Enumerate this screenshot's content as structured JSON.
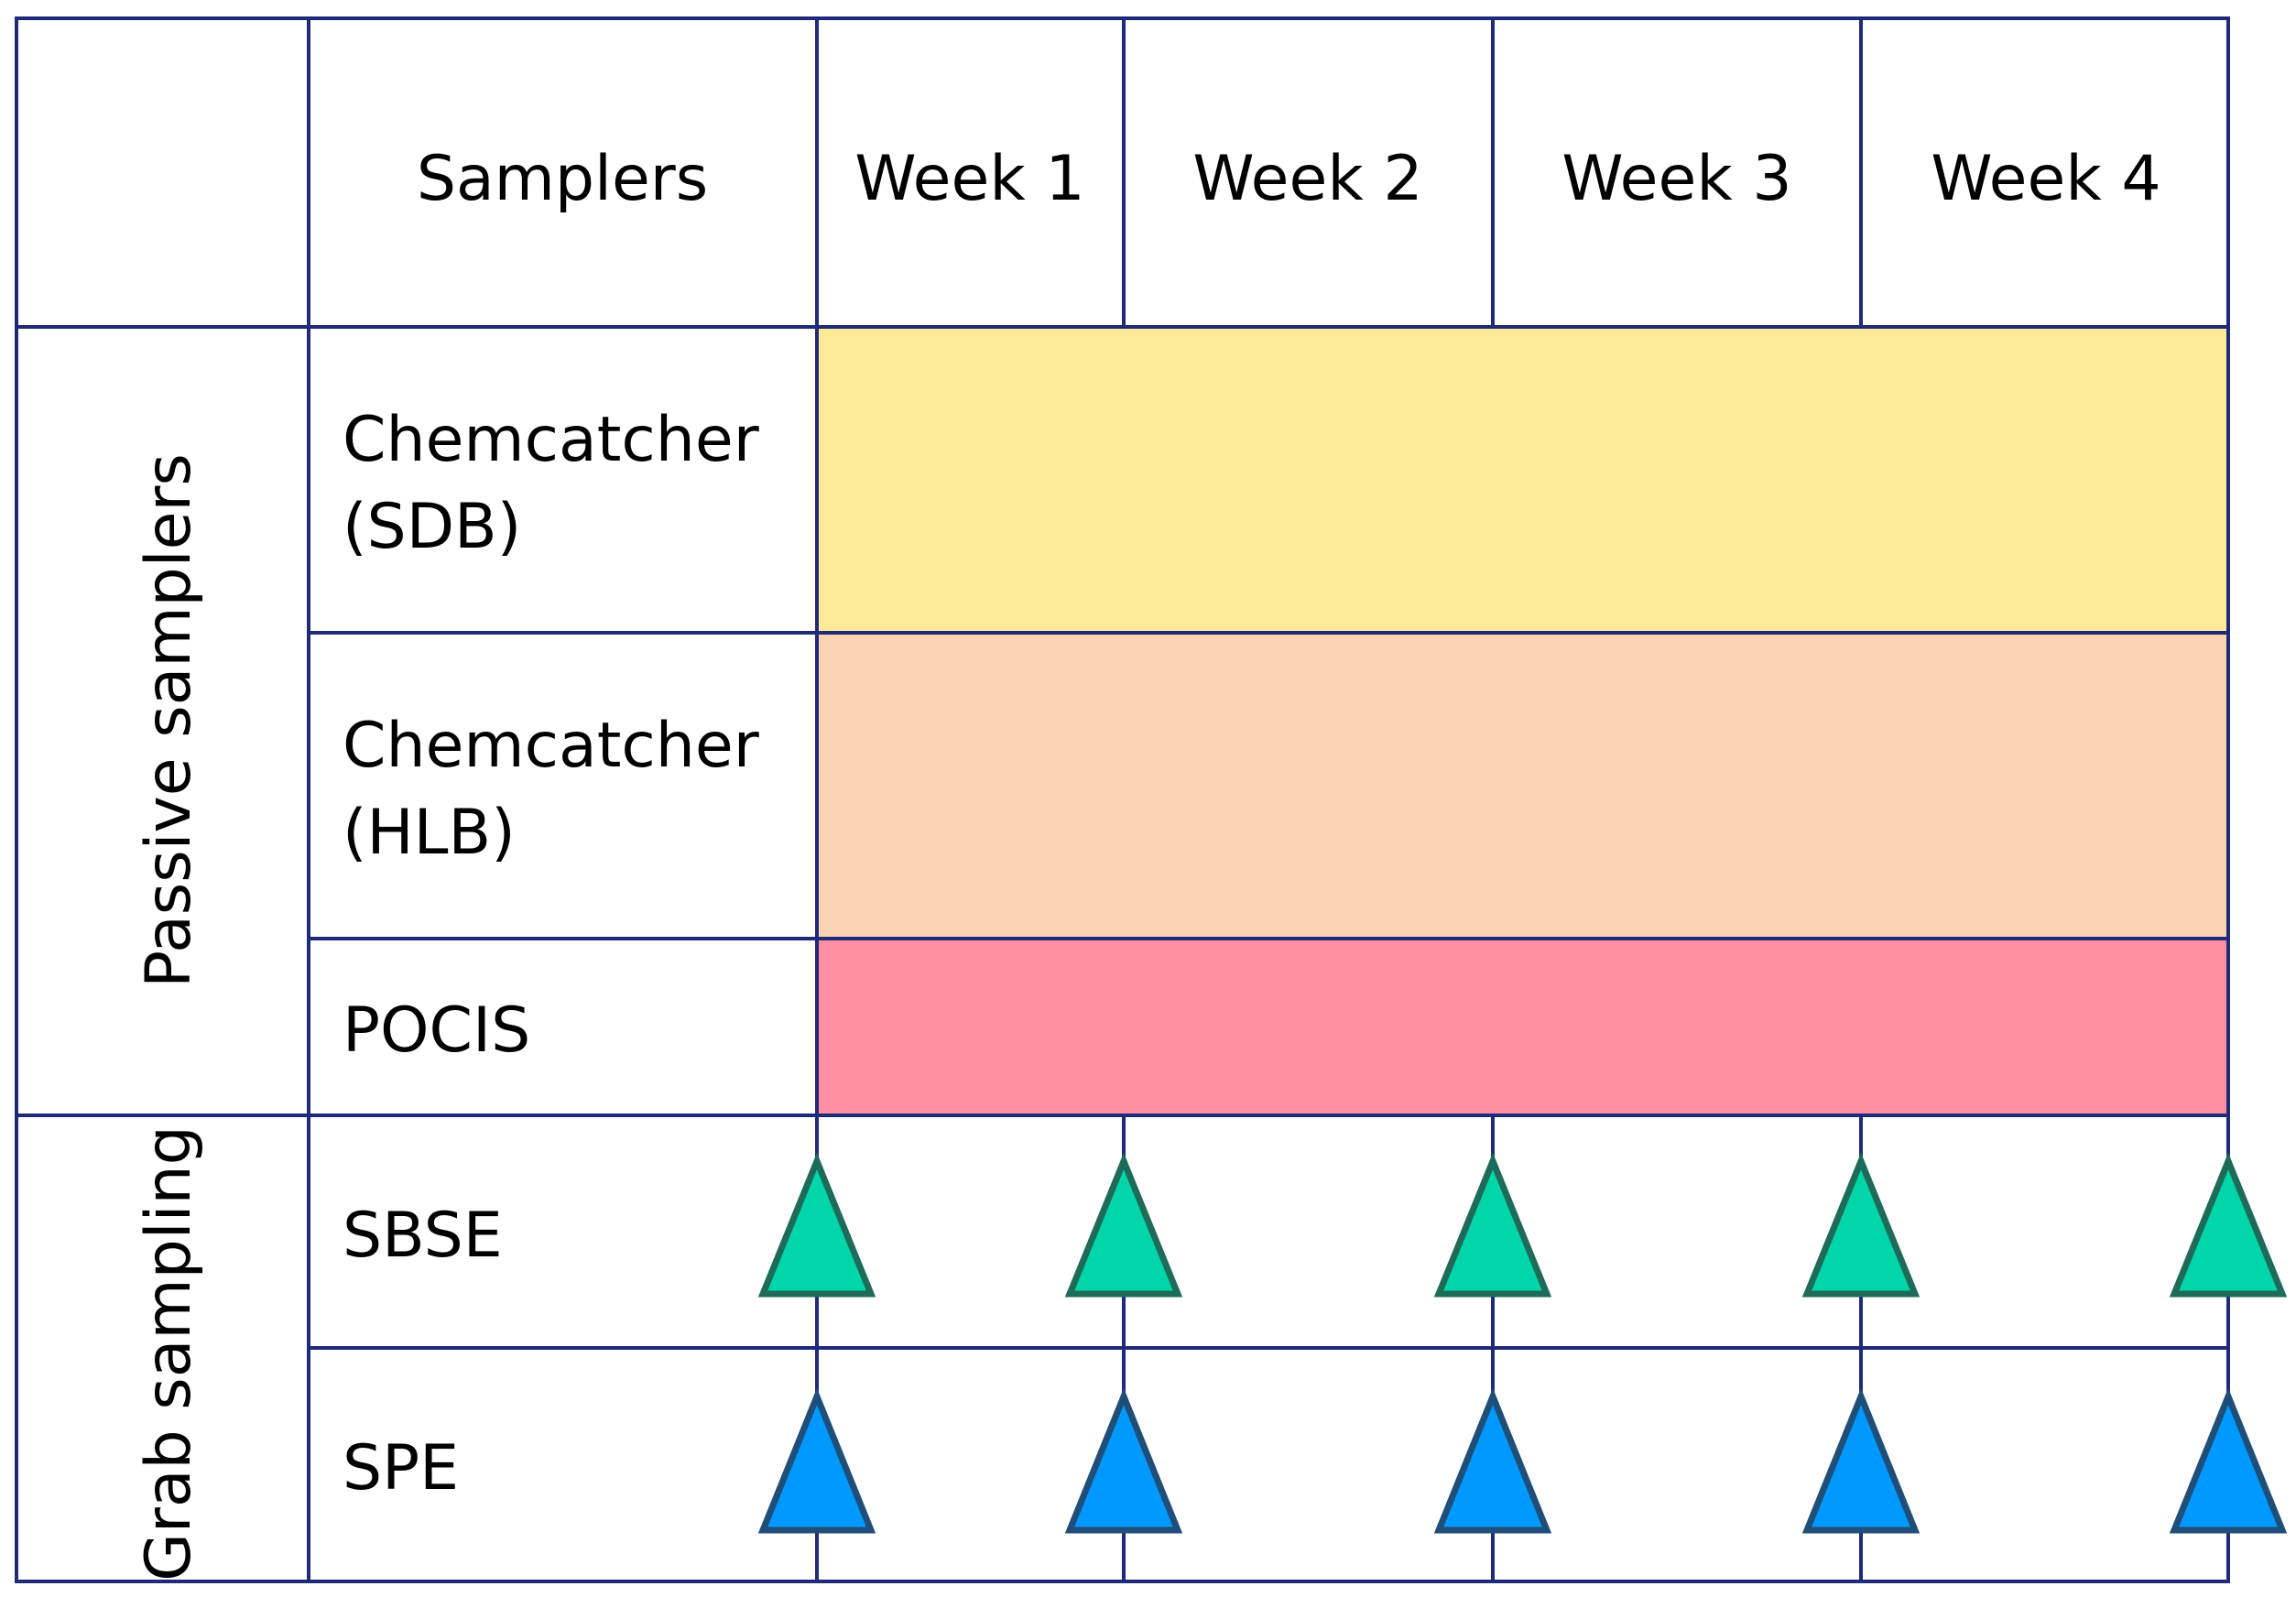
{
  "header": {
    "samplers_label": "Samplers",
    "weeks": [
      "Week 1",
      "Week 2",
      "Week 3",
      "Week 4"
    ]
  },
  "groups": [
    {
      "label": "Passive samplers",
      "rows": [
        {
          "name_lines": [
            "Chemcatcher",
            "(SDB)"
          ],
          "color": "#FFEA99",
          "type": "continuous"
        },
        {
          "name_lines": [
            "Chemcatcher",
            "(HLB)"
          ],
          "color": "#FCD2B2",
          "type": "continuous"
        },
        {
          "name_lines": [
            "POCIS"
          ],
          "color": "#FF8FA2",
          "type": "continuous"
        }
      ]
    },
    {
      "label": "Grab sampling",
      "rows": [
        {
          "name_lines": [
            "SBSE"
          ],
          "marker_fill": "#00D6A9",
          "marker_stroke": "#1E6B5A",
          "type": "grab"
        },
        {
          "name_lines": [
            "SPE"
          ],
          "marker_fill": "#0099FF",
          "marker_stroke": "#1F4E79",
          "type": "grab"
        }
      ]
    }
  ],
  "colors": {
    "grid_line": "#1F2A78",
    "text": "#000000"
  }
}
